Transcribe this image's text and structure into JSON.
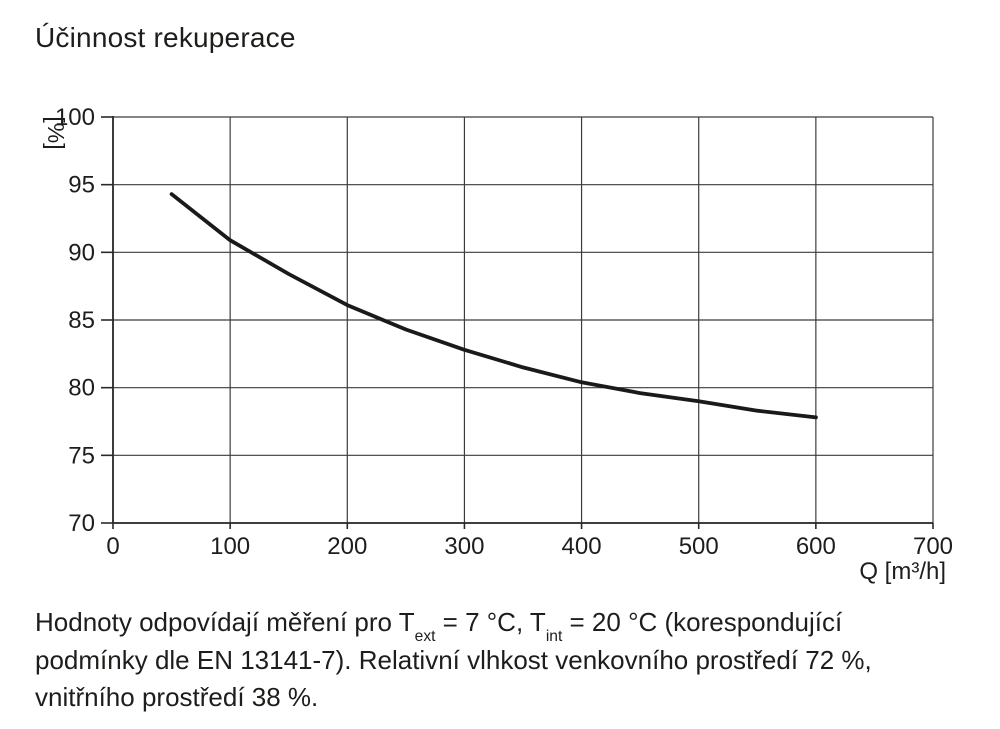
{
  "title": "Účinnost rekuperace",
  "chart_data": {
    "type": "line",
    "title": "Účinnost rekuperace",
    "xlabel": "Q [m³/h]",
    "ylabel": "[%]",
    "xlim": [
      0,
      700
    ],
    "ylim": [
      70,
      100
    ],
    "x_ticks": [
      0,
      100,
      200,
      300,
      400,
      500,
      600,
      700
    ],
    "y_ticks": [
      100,
      95,
      90,
      85,
      80,
      75,
      70
    ],
    "grid": true,
    "legend": "none",
    "series": [
      {
        "name": "Účinnost rekuperace",
        "x": [
          50,
          100,
          150,
          200,
          250,
          300,
          350,
          400,
          450,
          500,
          550,
          600
        ],
        "y": [
          94.3,
          90.9,
          88.4,
          86.1,
          84.3,
          82.8,
          81.5,
          80.4,
          79.6,
          79.0,
          78.3,
          77.8
        ]
      }
    ],
    "colors": {
      "curve": "#1a1a1a",
      "grid": "#3c3c3c",
      "axis": "#2a2a2a",
      "text": "#1d1d1b"
    }
  },
  "footnote": {
    "lines": [
      {
        "segments": [
          {
            "text": "Hodnoty odpovídají měření pro T"
          },
          {
            "sub": "ext"
          },
          {
            "text": " = 7 °C, T"
          },
          {
            "sub": "int"
          },
          {
            "text": " = 20 °C (korespondující"
          }
        ]
      },
      {
        "segments": [
          {
            "text": "podmínky dle EN 13141-7). Relativní vlhkost venkovního prostředí 72 %,"
          }
        ]
      },
      {
        "segments": [
          {
            "text": "vnitřního prostředí 38 %."
          }
        ]
      }
    ]
  }
}
